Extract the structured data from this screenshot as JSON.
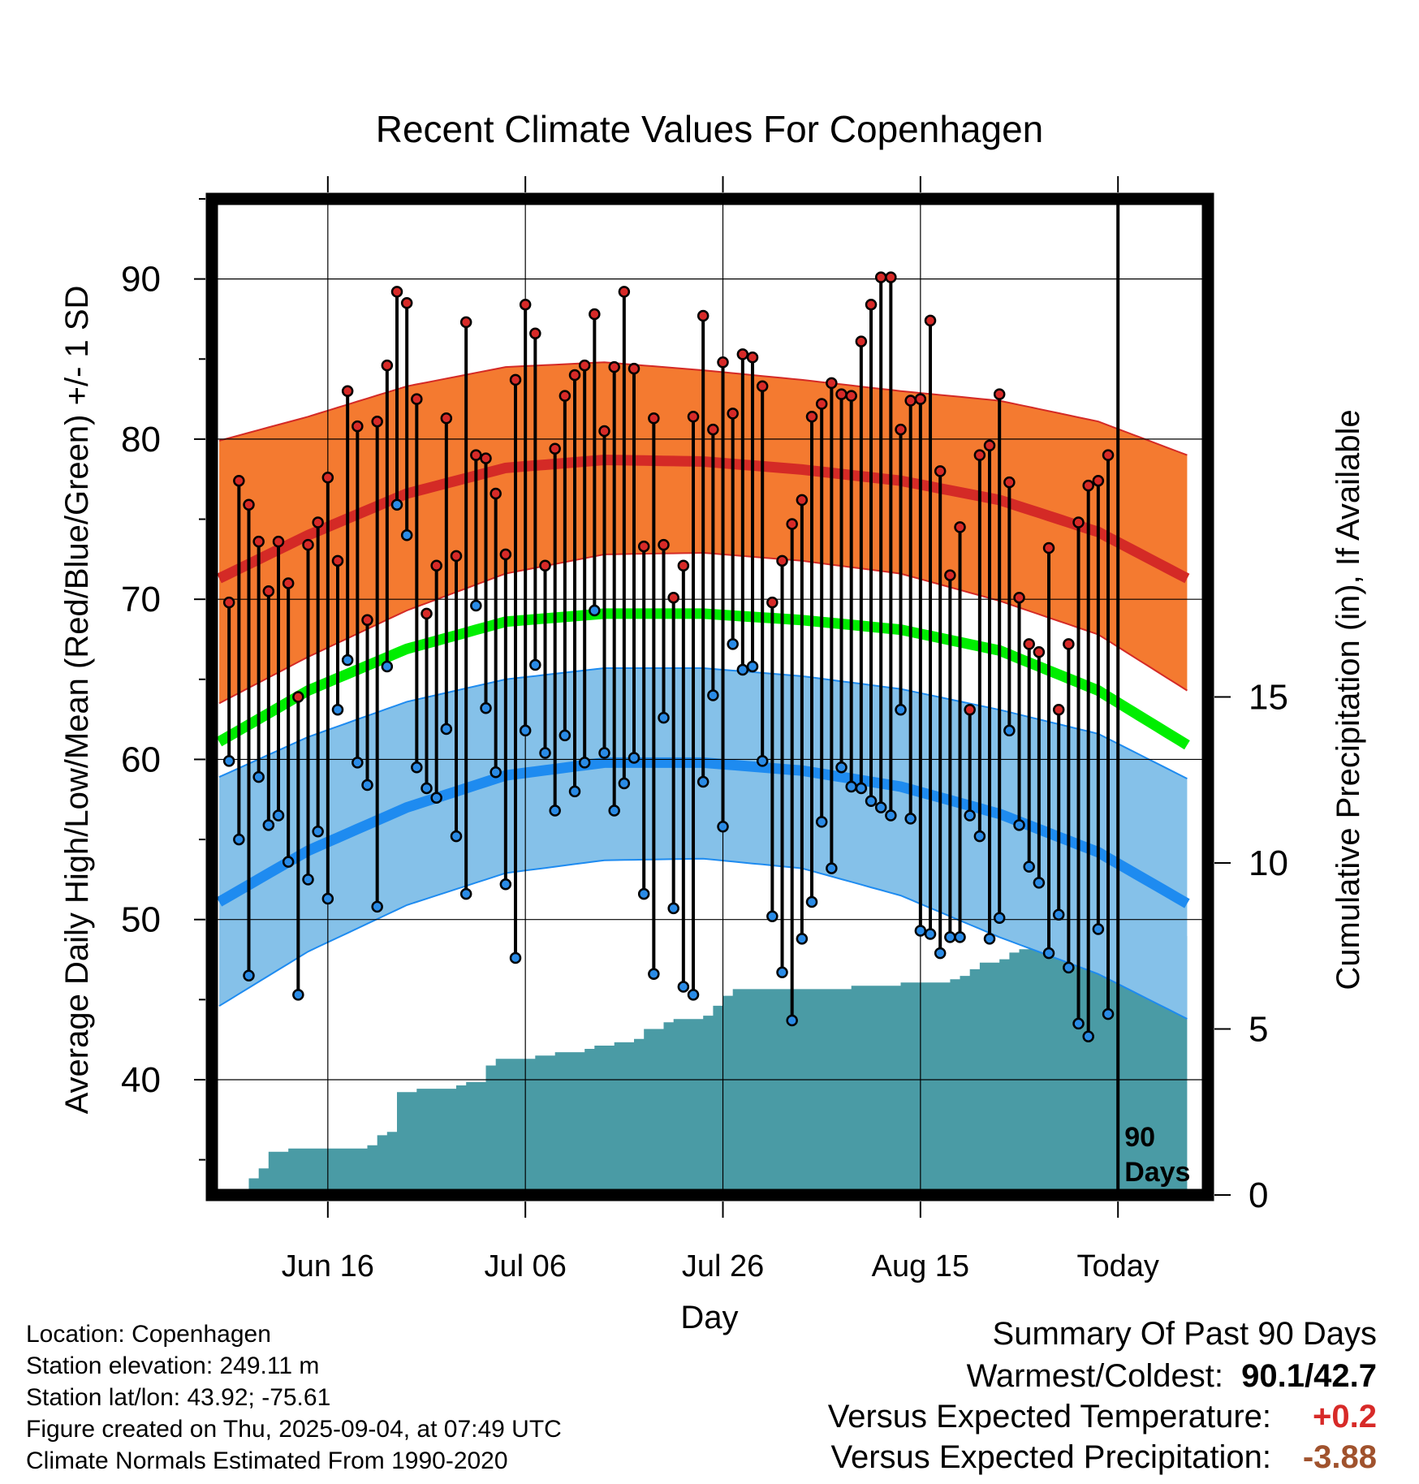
{
  "chart_data": {
    "type": "line",
    "title": "Recent Climate Values For Copenhagen",
    "xlabel": "Day",
    "ylabel_left": "Average Daily High/Low/Mean (Red/Blue/Green) +/- 1 SD",
    "ylabel_right": "Cumulative Precipitation (in), If Available",
    "x_range_days": [
      -89,
      9
    ],
    "x_ticks": [
      {
        "day": -78,
        "label": "Jun 16"
      },
      {
        "day": -58,
        "label": "Jul 06"
      },
      {
        "day": -38,
        "label": "Jul 26"
      },
      {
        "day": -18,
        "label": "Aug 15"
      },
      {
        "day": 2,
        "label": "Today"
      }
    ],
    "ylim_temp": [
      32.8,
      95
    ],
    "yticks_temp": [
      40,
      50,
      60,
      70,
      80,
      90
    ],
    "ylim_precip": [
      0,
      30
    ],
    "yticks_precip": [
      0,
      5,
      10,
      15
    ],
    "grid": true,
    "today_marker": {
      "day": 2,
      "label_line1": "90",
      "label_line2": "Days"
    },
    "normals": {
      "day": [
        -89,
        -80,
        -70,
        -60,
        -50,
        -40,
        -30,
        -20,
        -10,
        0,
        9
      ],
      "high_mean": [
        71.3,
        74.0,
        76.6,
        78.2,
        78.7,
        78.6,
        78.1,
        77.4,
        76.2,
        74.2,
        71.3
      ],
      "high_plus_sd": [
        79.9,
        81.4,
        83.3,
        84.5,
        84.8,
        84.3,
        83.7,
        83.0,
        82.4,
        81.1,
        79.0
      ],
      "high_minus_sd": [
        63.5,
        66.4,
        69.3,
        71.6,
        72.8,
        72.9,
        72.4,
        71.6,
        69.9,
        67.8,
        64.3
      ],
      "mean": [
        61.1,
        64.3,
        66.9,
        68.6,
        69.1,
        69.1,
        68.7,
        68.1,
        66.8,
        64.3,
        60.9
      ],
      "low_mean": [
        51.1,
        54.3,
        57.0,
        59.0,
        59.8,
        59.8,
        59.3,
        58.3,
        56.6,
        54.2,
        51.0
      ],
      "low_plus_sd": [
        58.9,
        61.4,
        63.6,
        65.0,
        65.7,
        65.7,
        65.2,
        64.4,
        63.1,
        61.6,
        58.8
      ],
      "low_minus_sd": [
        44.6,
        48.0,
        50.9,
        52.9,
        53.7,
        53.8,
        53.2,
        51.5,
        48.9,
        46.6,
        43.8
      ]
    },
    "series": [
      {
        "name": "High",
        "color": "#d72a28",
        "start_day": -88,
        "values": [
          69.8,
          77.4,
          75.9,
          73.6,
          70.5,
          73.6,
          71.0,
          63.9,
          73.4,
          74.8,
          77.6,
          72.4,
          83.0,
          80.8,
          68.7,
          81.1,
          84.6,
          89.2,
          88.5,
          82.5,
          69.1,
          72.1,
          81.3,
          72.7,
          87.3,
          79.0,
          78.8,
          76.6,
          72.8,
          83.7,
          88.4,
          86.6,
          72.1,
          79.4,
          82.7,
          84.0,
          84.6,
          87.8,
          80.5,
          84.5,
          89.2,
          84.4,
          73.3,
          81.3,
          73.4,
          70.1,
          72.1,
          81.4,
          87.7,
          80.6,
          84.8,
          81.6,
          85.3,
          85.1,
          83.3,
          69.8,
          72.4,
          74.7,
          76.2,
          81.4,
          82.2,
          83.5,
          82.8,
          82.7,
          86.1,
          88.4,
          90.1,
          90.1,
          80.6,
          82.4,
          82.5,
          87.4,
          78.0,
          71.5,
          74.5,
          63.1,
          79.0,
          79.6,
          82.8,
          77.3,
          70.1,
          67.2,
          66.7,
          73.2,
          63.1,
          67.2,
          74.8,
          77.1,
          77.4,
          79.0
        ]
      },
      {
        "name": "Low",
        "color": "#2a8be6",
        "start_day": -88,
        "values": [
          59.9,
          55.0,
          46.5,
          58.9,
          55.9,
          56.5,
          53.6,
          45.3,
          52.5,
          55.5,
          51.3,
          63.1,
          66.2,
          59.8,
          58.4,
          50.8,
          65.8,
          75.9,
          74.0,
          59.5,
          58.2,
          57.6,
          61.9,
          55.2,
          51.6,
          69.6,
          63.2,
          59.2,
          52.2,
          47.6,
          61.8,
          65.9,
          60.4,
          56.8,
          61.5,
          58.0,
          59.8,
          69.3,
          60.4,
          56.8,
          58.5,
          60.1,
          51.6,
          46.6,
          62.6,
          50.7,
          45.8,
          45.3,
          58.6,
          64.0,
          55.8,
          67.2,
          65.6,
          65.8,
          59.9,
          50.2,
          46.7,
          43.7,
          48.8,
          51.1,
          56.1,
          53.2,
          59.5,
          58.3,
          58.2,
          57.4,
          57.0,
          56.5,
          63.1,
          56.3,
          49.3,
          49.1,
          47.9,
          48.9,
          48.9,
          56.5,
          55.2,
          48.8,
          50.1,
          61.8,
          55.9,
          53.3,
          52.3,
          47.9,
          50.3,
          47.0,
          43.5,
          42.7,
          49.4,
          44.1
        ]
      }
    ],
    "precip": {
      "day": [
        -87,
        -86,
        -85,
        -84,
        -82,
        -76,
        -74,
        -73,
        -72,
        -71,
        -70,
        -69,
        -68,
        -66,
        -65,
        -64,
        -62,
        -61,
        -60,
        -59,
        -57,
        -55,
        -53,
        -52,
        -51,
        -49,
        -48,
        -47,
        -46,
        -44,
        -43,
        -40,
        -39,
        -38,
        -37,
        -35,
        -30,
        -25,
        -20,
        -15,
        -14,
        -13,
        -12,
        -10,
        -9,
        -8,
        -7,
        -5,
        -4,
        -3,
        -2,
        -1,
        0,
        9
      ],
      "cumulative": [
        0.1,
        0.5,
        0.8,
        1.3,
        1.4,
        1.4,
        1.5,
        1.8,
        1.9,
        3.1,
        3.1,
        3.2,
        3.2,
        3.2,
        3.3,
        3.4,
        3.9,
        4.1,
        4.1,
        4.1,
        4.2,
        4.3,
        4.3,
        4.4,
        4.5,
        4.6,
        4.6,
        4.7,
        5.0,
        5.2,
        5.3,
        5.4,
        5.7,
        6.0,
        6.2,
        6.2,
        6.2,
        6.3,
        6.4,
        6.5,
        6.6,
        6.8,
        7.0,
        7.1,
        7.3,
        7.4,
        7.5,
        7.6,
        7.8,
        7.8,
        7.8,
        7.8,
        7.8,
        7.8
      ]
    }
  },
  "footer_info": {
    "location": "Location: Copenhagen",
    "elevation": "Station elevation: 249.11 m",
    "latlon": "Station lat/lon: 43.92; -75.61",
    "created": "Figure created on Thu, 2025-09-04, at 07:49 UTC",
    "normals": "Climate Normals Estimated From 1990-2020"
  },
  "summary": {
    "title": "Summary Of Past 90 Days",
    "warm_cold_label": "Warmest/Coldest:",
    "warm_cold_value": "90.1/42.7",
    "temp_label": "Versus Expected Temperature:",
    "temp_value": "+0.2",
    "temp_color": "#d72a28",
    "precip_label": "Versus Expected Precipitation:",
    "precip_value": "-3.88",
    "precip_color": "#a0522d"
  },
  "colors": {
    "high_band": "#f47a30",
    "high_line": "#d42a26",
    "mean_line": "#00ee00",
    "low_band": "#85c1e9",
    "low_line": "#1e8bf0",
    "precip_fill": "#4a9ba5"
  }
}
